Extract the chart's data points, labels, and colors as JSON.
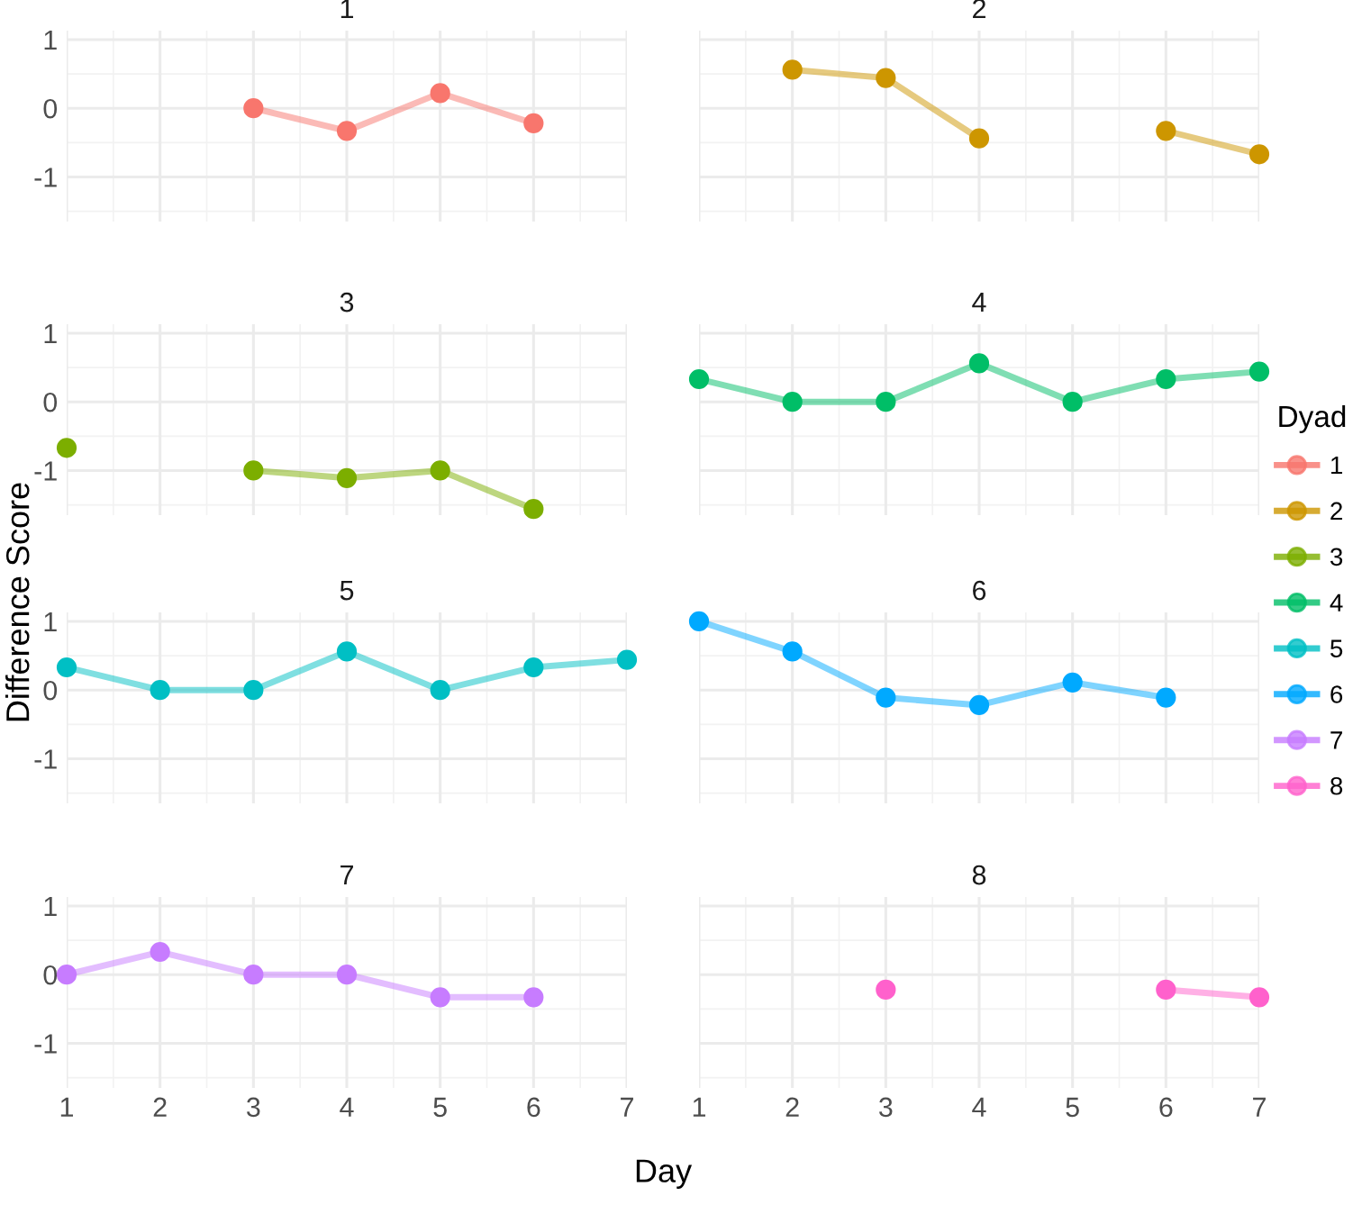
{
  "chart_data": [
    {
      "type": "line",
      "title": "1",
      "x": [
        3,
        4,
        5,
        6
      ],
      "xlim": [
        1,
        7
      ],
      "ylim": [
        -1.65,
        1.13
      ],
      "xticks": [
        1,
        2,
        3,
        4,
        5,
        6,
        7
      ],
      "yticks": [
        -1,
        0,
        1
      ],
      "grid": true,
      "marker": "circle",
      "tick_labels": "y",
      "series": [
        {
          "name": "1",
          "color": "#f8766d",
          "values": [
            0,
            -0.33,
            0.22,
            -0.22
          ]
        }
      ]
    },
    {
      "type": "line",
      "title": "2",
      "x": [
        2,
        3,
        4,
        5,
        6,
        7
      ],
      "xlim": [
        1,
        7
      ],
      "ylim": [
        -1.65,
        1.13
      ],
      "xticks": [
        1,
        2,
        3,
        4,
        5,
        6,
        7
      ],
      "yticks": [
        -1,
        0,
        1
      ],
      "grid": true,
      "marker": "circle",
      "tick_labels": false,
      "series": [
        {
          "name": "2",
          "color": "#cd9600",
          "values": [
            0.56,
            0.44,
            -0.44,
            null,
            -0.33,
            -0.67
          ]
        }
      ]
    },
    {
      "type": "line",
      "title": "3",
      "x": [
        1,
        2,
        3,
        4,
        5,
        6
      ],
      "xlim": [
        1,
        7
      ],
      "ylim": [
        -1.65,
        1.13
      ],
      "xticks": [
        1,
        2,
        3,
        4,
        5,
        6,
        7
      ],
      "yticks": [
        -1,
        0,
        1
      ],
      "grid": true,
      "marker": "circle",
      "tick_labels": "y",
      "series": [
        {
          "name": "3",
          "color": "#7cae00",
          "values": [
            -0.67,
            null,
            -1,
            -1.11,
            -1,
            -1.56
          ]
        }
      ]
    },
    {
      "type": "line",
      "title": "4",
      "x": [
        1,
        2,
        3,
        4,
        5,
        6,
        7
      ],
      "xlim": [
        1,
        7
      ],
      "ylim": [
        -1.65,
        1.13
      ],
      "xticks": [
        1,
        2,
        3,
        4,
        5,
        6,
        7
      ],
      "yticks": [
        -1,
        0,
        1
      ],
      "grid": true,
      "marker": "circle",
      "tick_labels": false,
      "series": [
        {
          "name": "4",
          "color": "#00be67",
          "values": [
            0.33,
            0,
            0,
            0.56,
            0,
            0.33,
            0.44
          ]
        }
      ]
    },
    {
      "type": "line",
      "title": "5",
      "x": [
        1,
        2,
        3,
        4,
        5,
        6,
        7
      ],
      "xlim": [
        1,
        7
      ],
      "ylim": [
        -1.65,
        1.13
      ],
      "xticks": [
        1,
        2,
        3,
        4,
        5,
        6,
        7
      ],
      "yticks": [
        -1,
        0,
        1
      ],
      "grid": true,
      "marker": "circle",
      "tick_labels": "y",
      "ylabel": "Difference Score",
      "series": [
        {
          "name": "5",
          "color": "#00bfc4",
          "values": [
            0.33,
            0,
            0,
            0.56,
            0,
            0.33,
            0.44
          ]
        }
      ]
    },
    {
      "type": "line",
      "title": "6",
      "x": [
        1,
        2,
        3,
        4,
        5,
        6
      ],
      "xlim": [
        1,
        7
      ],
      "ylim": [
        -1.65,
        1.13
      ],
      "xticks": [
        1,
        2,
        3,
        4,
        5,
        6,
        7
      ],
      "yticks": [
        -1,
        0,
        1
      ],
      "grid": true,
      "marker": "circle",
      "tick_labels": false,
      "series": [
        {
          "name": "6",
          "color": "#00a9ff",
          "values": [
            1,
            0.56,
            -0.11,
            -0.22,
            0.11,
            -0.11
          ]
        }
      ]
    },
    {
      "type": "line",
      "title": "7",
      "x": [
        1,
        2,
        3,
        4,
        5,
        6
      ],
      "xlim": [
        1,
        7
      ],
      "ylim": [
        -1.65,
        1.13
      ],
      "xticks": [
        1,
        2,
        3,
        4,
        5,
        6,
        7
      ],
      "yticks": [
        -1,
        0,
        1
      ],
      "grid": true,
      "marker": "circle",
      "xlabel": "Day",
      "series": [
        {
          "name": "7",
          "color": "#c77cff",
          "values": [
            0,
            0.33,
            0,
            0,
            -0.33,
            -0.33
          ]
        }
      ]
    },
    {
      "type": "line",
      "title": "8",
      "x": [
        3,
        4,
        5,
        6,
        7
      ],
      "xlim": [
        1,
        7
      ],
      "ylim": [
        -1.65,
        1.13
      ],
      "xticks": [
        1,
        2,
        3,
        4,
        5,
        6,
        7
      ],
      "yticks": [
        -1,
        0,
        1
      ],
      "grid": true,
      "marker": "circle",
      "tick_labels": "x",
      "legend": "right",
      "legend_title": "Dyad",
      "series": [
        {
          "name": "8",
          "color": "#ff61cc",
          "values": [
            -0.22,
            null,
            null,
            -0.22,
            -0.33
          ]
        }
      ]
    }
  ]
}
